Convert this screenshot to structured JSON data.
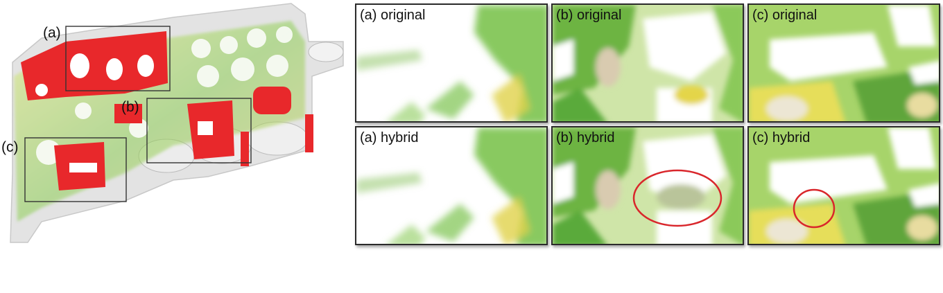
{
  "overview": {
    "callouts": {
      "a": "(a)",
      "b": "(b)",
      "c": "(c)"
    },
    "colors": {
      "highlight": "#e8282b",
      "volume_green": "#5fb83a",
      "volume_yellow": "#d7dc3c",
      "shell": "#d9d9d9"
    }
  },
  "panels": {
    "a_original": {
      "label": "(a) original"
    },
    "b_original": {
      "label": "(b) original"
    },
    "c_original": {
      "label": "(c) original"
    },
    "a_hybrid": {
      "label": "(a) hybrid"
    },
    "b_hybrid": {
      "label": "(b) hybrid"
    },
    "c_hybrid": {
      "label": "(c) hybrid"
    }
  },
  "annotation_color": "#d9262b"
}
